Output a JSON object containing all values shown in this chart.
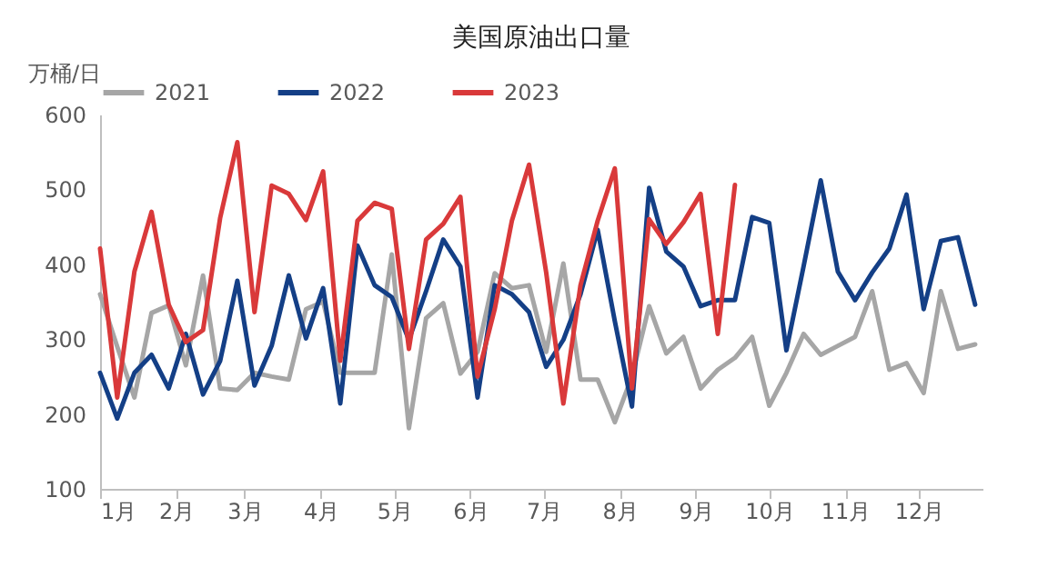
{
  "chart_data": {
    "type": "line",
    "title": "美国原油出口量",
    "ylabel": "万桶/日",
    "x": [
      "--01-01",
      "--01-08",
      "--01-15",
      "--01-22",
      "--01-29",
      "--02-05",
      "--02-12",
      "--02-19",
      "--02-26",
      "--03-05",
      "--03-12",
      "--03-19",
      "--03-26",
      "--04-02",
      "--04-09",
      "--04-16",
      "--04-23",
      "--04-30",
      "--05-07",
      "--05-14",
      "--05-21",
      "--05-28",
      "--06-04",
      "--06-11",
      "--06-18",
      "--06-25",
      "--07-02",
      "--07-09",
      "--07-16",
      "--07-23",
      "--07-30",
      "--08-06",
      "--08-13",
      "--08-20",
      "--08-27",
      "--09-03",
      "--09-10",
      "--09-17",
      "--09-24",
      "--10-01",
      "--10-08",
      "--10-15",
      "--10-22",
      "--10-29",
      "--11-05",
      "--11-12",
      "--11-19",
      "--11-26",
      "--12-03",
      "--12-10",
      "--12-17",
      "--12-24"
    ],
    "xlim": [
      "--01-01",
      "--12-27"
    ],
    "xticks": [
      {
        "value": "--01-01",
        "label": "1月"
      },
      {
        "value": "--02-01",
        "label": "2月"
      },
      {
        "value": "--03-01",
        "label": "3月"
      },
      {
        "value": "--04-01",
        "label": "4月"
      },
      {
        "value": "--05-01",
        "label": "5月"
      },
      {
        "value": "--06-01",
        "label": "6月"
      },
      {
        "value": "--07-01",
        "label": "7月"
      },
      {
        "value": "--08-01",
        "label": "8月"
      },
      {
        "value": "--09-01",
        "label": "9月"
      },
      {
        "value": "--10-01",
        "label": "10月"
      },
      {
        "value": "--11-01",
        "label": "11月"
      },
      {
        "value": "--12-01",
        "label": "12月"
      }
    ],
    "ylim": [
      100,
      600
    ],
    "yticks": [
      100,
      200,
      300,
      400,
      500,
      600
    ],
    "legend": "top",
    "grid": false,
    "line_style": "solid",
    "series": [
      {
        "name": "2021",
        "color": "#a6a6a6",
        "values": [
          360,
          290,
          222,
          335,
          345,
          265,
          385,
          234,
          232,
          255,
          250,
          246,
          340,
          350,
          255,
          255,
          255,
          413,
          181,
          328,
          348,
          254,
          283,
          388,
          368,
          372,
          283,
          401,
          246,
          246,
          189,
          250,
          344,
          281,
          303,
          234,
          259,
          275,
          303,
          211,
          255,
          307,
          279,
          291,
          303,
          364,
          259,
          268,
          228,
          364,
          287,
          293
        ]
      },
      {
        "name": "2022",
        "color": "#143f86",
        "values": [
          255,
          194,
          255,
          279,
          234,
          307,
          226,
          271,
          378,
          238,
          291,
          385,
          301,
          368,
          214,
          425,
          372,
          356,
          299,
          364,
          433,
          397,
          222,
          372,
          360,
          336,
          263,
          299,
          360,
          446,
          324,
          210,
          502,
          417,
          397,
          344,
          352,
          352,
          463,
          455,
          285,
          397,
          512,
          390,
          352,
          389,
          421,
          493,
          340,
          431,
          436,
          346
        ]
      },
      {
        "name": "2023",
        "color": "#d9393a",
        "values": [
          421,
          222,
          390,
          470,
          346,
          296,
          312,
          462,
          563,
          336,
          505,
          494,
          459,
          524,
          271,
          458,
          482,
          474,
          287,
          433,
          454,
          490,
          250,
          340,
          458,
          533,
          389,
          214,
          372,
          458,
          528,
          234,
          460,
          427,
          456,
          494,
          307,
          506,
          null,
          null,
          null,
          null,
          null,
          null,
          null,
          null,
          null,
          null,
          null,
          null,
          null,
          null
        ]
      }
    ]
  }
}
